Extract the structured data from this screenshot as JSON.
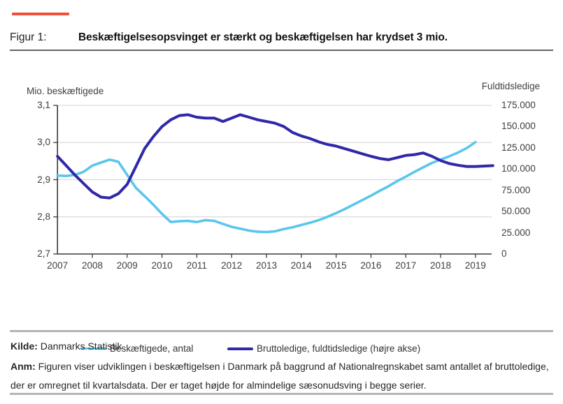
{
  "header": {
    "figure_label": "Figur 1:",
    "title": "Beskæftigelsesopsvinget er stærkt og beskæftigelsen har krydset 3 mio.",
    "accent_color": "#ef4e3b"
  },
  "chart_data": {
    "type": "line",
    "title": "Beskæftigelsesopsvinget er stærkt og beskæftigelsen har krydset 3 mio.",
    "x_start_year": 2007,
    "x_step_years": 0.25,
    "grid": true,
    "x_ticks": [
      "2007",
      "2008",
      "2009",
      "2010",
      "2011",
      "2012",
      "2013",
      "2014",
      "2015",
      "2016",
      "2017",
      "2018",
      "2019"
    ],
    "left_axis": {
      "title": "Mio. beskæftigede",
      "ticks": [
        "3,1",
        "3,0",
        "2,9",
        "2,8",
        "2,7"
      ],
      "min": 2.7,
      "max": 3.1
    },
    "right_axis": {
      "title": "Fuldtidsledige",
      "ticks": [
        "175.000",
        "150.000",
        "125.000",
        "100.000",
        "75.000",
        "50.000",
        "25.000",
        "0"
      ],
      "min": 0,
      "max": 175000
    },
    "series": [
      {
        "name": "Beskæftigede, antal",
        "axis": "left",
        "color": "#5bc6ec",
        "values": [
          2.911,
          2.91,
          2.913,
          2.921,
          2.938,
          2.946,
          2.954,
          2.948,
          2.913,
          2.878,
          2.856,
          2.833,
          2.808,
          2.786,
          2.788,
          2.789,
          2.786,
          2.791,
          2.789,
          2.781,
          2.773,
          2.768,
          2.763,
          2.76,
          2.759,
          2.761,
          2.767,
          2.772,
          2.778,
          2.784,
          2.791,
          2.8,
          2.81,
          2.821,
          2.833,
          2.845,
          2.857,
          2.87,
          2.882,
          2.896,
          2.908,
          2.921,
          2.933,
          2.945,
          2.954,
          2.963,
          2.973,
          2.985,
          3.001
        ]
      },
      {
        "name": "Bruttoledige, fuldtidsledige (højre akse)",
        "axis": "right",
        "color": "#2f28a8",
        "values": [
          115000,
          104000,
          93000,
          83000,
          73000,
          67000,
          66000,
          71000,
          82000,
          103000,
          124000,
          138000,
          150000,
          158000,
          163000,
          164000,
          161000,
          160000,
          160000,
          156000,
          160000,
          164000,
          161000,
          158000,
          156000,
          154000,
          150000,
          143000,
          139000,
          136000,
          132000,
          129000,
          127000,
          124000,
          121000,
          118000,
          115000,
          112500,
          111000,
          113500,
          116000,
          117000,
          119000,
          115000,
          110000,
          106500,
          104500,
          103000,
          103000,
          103500,
          104000
        ]
      }
    ],
    "legend_position": "bottom"
  },
  "footer": {
    "kilde_label": "Kilde:",
    "kilde_text": " Danmarks Statistik",
    "anm_label": "Anm:",
    "anm_text": " Figuren viser udviklingen i beskæftigelsen i Danmark på baggrund af Nationalregnskabet samt antallet af bruttoledige, der er omregnet til kvartalsdata. Der er taget højde for almindelige sæsonudsving i begge serier."
  }
}
